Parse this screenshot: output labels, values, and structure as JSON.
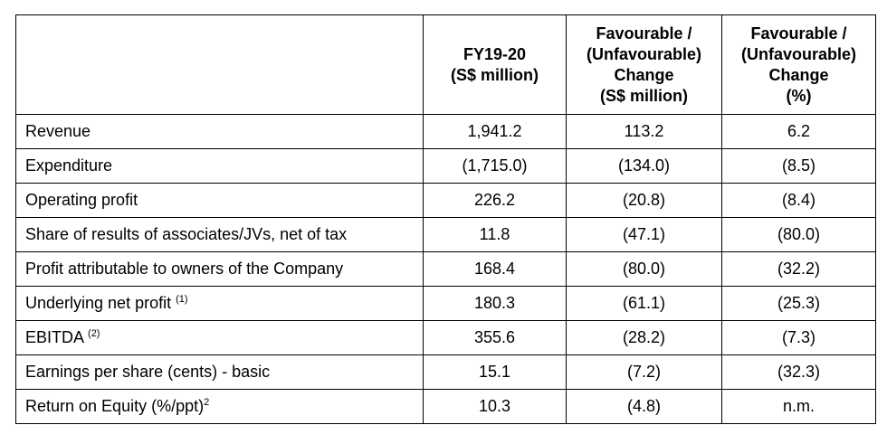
{
  "headers": {
    "col1": [
      "FY19-20",
      "(S$ million)"
    ],
    "col2": [
      "Favourable /",
      "(Unfavourable)",
      "Change",
      "(S$ million)"
    ],
    "col3": [
      "Favourable /",
      "(Unfavourable)",
      "Change",
      "(%)"
    ]
  },
  "rows": [
    {
      "label": "Revenue",
      "note": "",
      "fy": "1,941.2",
      "change": "113.2",
      "pct": "6.2"
    },
    {
      "label": "Expenditure",
      "note": "",
      "fy": "(1,715.0)",
      "change": "(134.0)",
      "pct": "(8.5)"
    },
    {
      "label": "Operating profit",
      "note": "",
      "fy": "226.2",
      "change": "(20.8)",
      "pct": "(8.4)"
    },
    {
      "label": "Share of results of associates/JVs, net of tax",
      "note": "",
      "fy": "11.8",
      "change": "(47.1)",
      "pct": "(80.0)"
    },
    {
      "label": "Profit attributable to owners of the Company",
      "note": "",
      "fy": "168.4",
      "change": "(80.0)",
      "pct": "(32.2)"
    },
    {
      "label": "Underlying net profit ",
      "note": "(1)",
      "fy": "180.3",
      "change": "(61.1)",
      "pct": "(25.3)"
    },
    {
      "label": "EBITDA ",
      "note": "(2)",
      "fy": "355.6",
      "change": "(28.2)",
      "pct": "(7.3)"
    },
    {
      "label": "Earnings per share (cents) - basic",
      "note": "",
      "fy": "15.1",
      "change": "(7.2)",
      "pct": "(32.3)"
    },
    {
      "label": "Return on Equity (%/ppt)",
      "note": "2",
      "fy": "10.3",
      "change": "(4.8)",
      "pct": "n.m."
    }
  ]
}
